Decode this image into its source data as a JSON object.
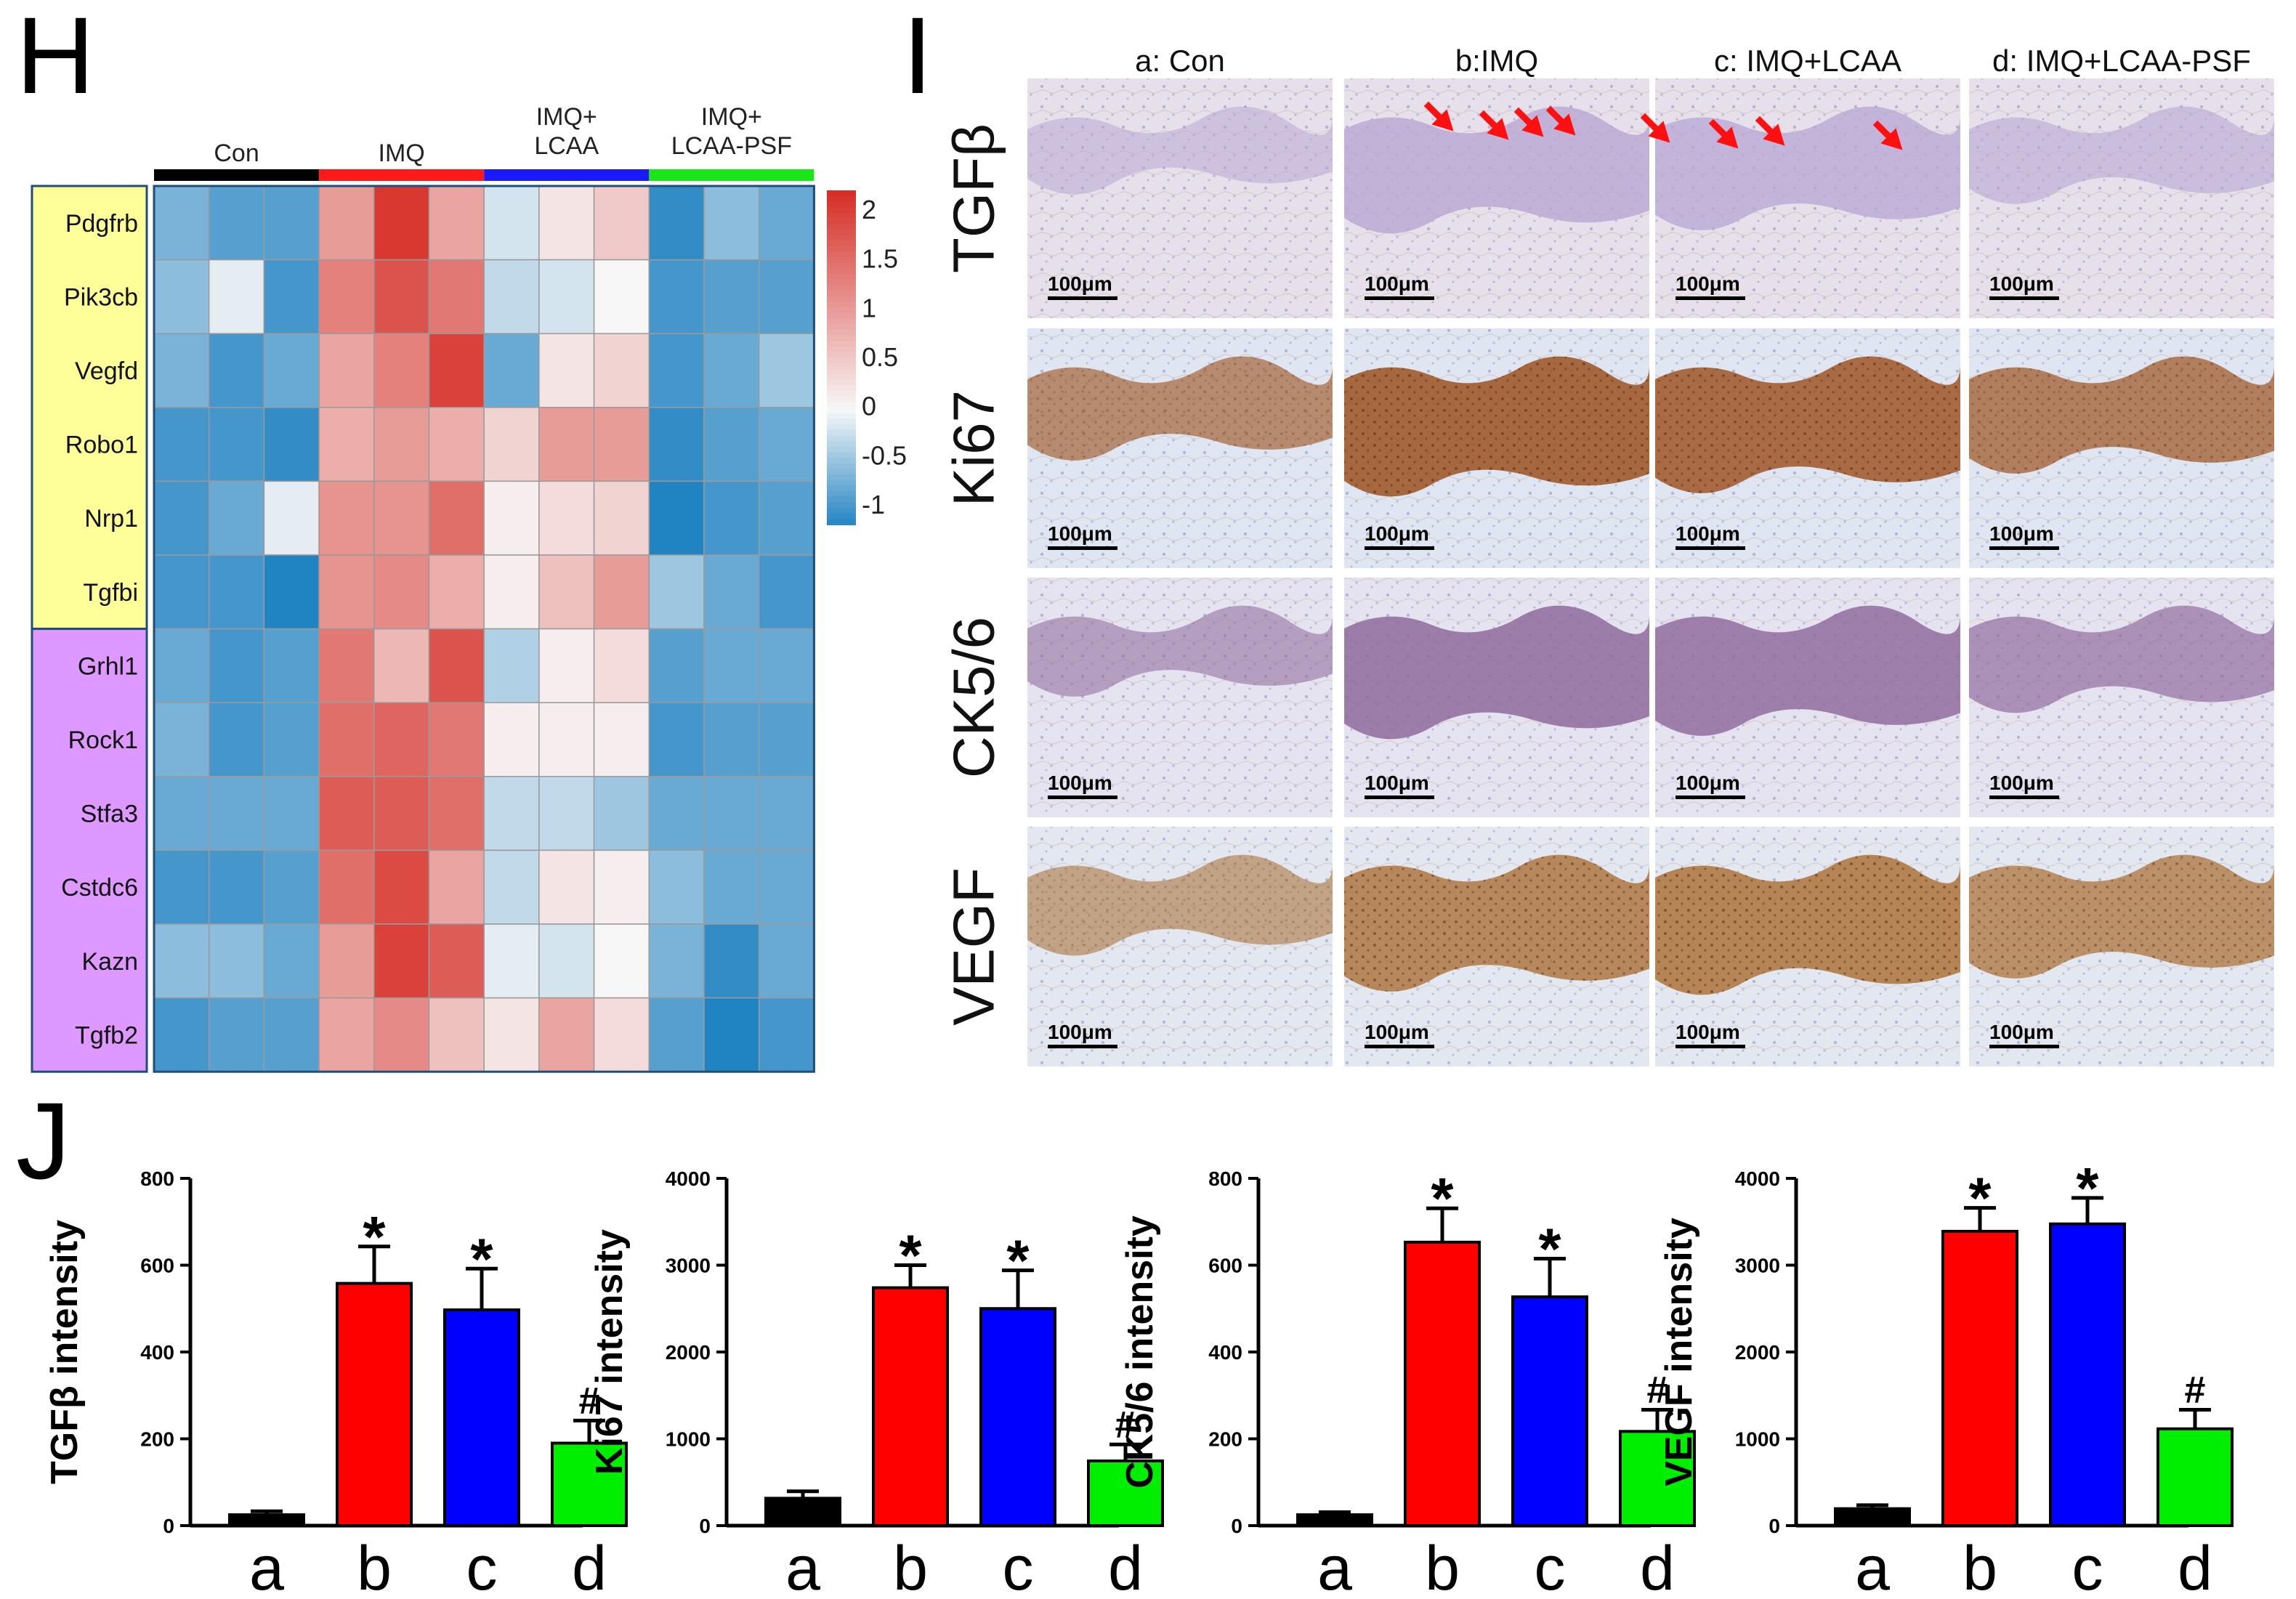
{
  "panels": {
    "H": {
      "label": "H",
      "groups": [
        {
          "name": "Con",
          "color": "#000000"
        },
        {
          "name": "IMQ",
          "color": "#ff1a1a"
        },
        {
          "name": "IMQ+\nLCAA",
          "color": "#1a1aff"
        },
        {
          "name": "IMQ+\nLCAA-PSF",
          "color": "#19e619"
        }
      ],
      "genes": [
        "Pdgfrb",
        "Pik3cb",
        "Vegfd",
        "Robo1",
        "Nrp1",
        "Tgfbi",
        "Grhl1",
        "Rock1",
        "Stfa3",
        "Cstdc6",
        "Kazn",
        "Tgfb2"
      ],
      "gene_group_colors": [
        "#ffff99",
        "#dd99ff"
      ],
      "values": [
        [
          -0.7,
          -0.9,
          -0.9,
          1.0,
          2.1,
          0.9,
          -0.2,
          0.2,
          0.5,
          -1.1,
          -0.6,
          -0.8
        ],
        [
          -0.6,
          -0.1,
          -1.0,
          1.3,
          1.8,
          1.4,
          -0.3,
          -0.2,
          0.0,
          -1.0,
          -0.9,
          -0.9
        ],
        [
          -0.7,
          -1.0,
          -0.8,
          0.9,
          1.3,
          2.0,
          -0.8,
          0.2,
          0.4,
          -1.0,
          -0.8,
          -0.5
        ],
        [
          -1.0,
          -1.0,
          -1.1,
          0.8,
          1.0,
          0.8,
          0.4,
          1.0,
          1.0,
          -1.1,
          -0.9,
          -0.8
        ],
        [
          -1.0,
          -0.8,
          -0.1,
          1.1,
          1.1,
          1.5,
          0.1,
          0.3,
          0.4,
          -1.3,
          -1.0,
          -0.9
        ],
        [
          -1.0,
          -1.0,
          -1.2,
          1.1,
          1.2,
          0.8,
          0.1,
          0.6,
          1.0,
          -0.5,
          -0.8,
          -1.0
        ],
        [
          -0.8,
          -1.0,
          -0.9,
          1.4,
          0.7,
          1.8,
          -0.4,
          0.1,
          0.3,
          -0.9,
          -0.8,
          -0.8
        ],
        [
          -0.7,
          -1.0,
          -0.9,
          1.5,
          1.6,
          1.4,
          0.1,
          0.1,
          0.1,
          -1.0,
          -0.9,
          -0.9
        ],
        [
          -0.8,
          -0.8,
          -0.8,
          1.7,
          1.7,
          1.5,
          -0.3,
          -0.3,
          -0.5,
          -0.8,
          -0.8,
          -0.8
        ],
        [
          -1.0,
          -1.0,
          -0.9,
          1.5,
          1.9,
          0.9,
          -0.3,
          0.2,
          0.1,
          -0.6,
          -0.8,
          -0.8
        ],
        [
          -0.6,
          -0.6,
          -0.8,
          1.0,
          2.0,
          1.7,
          -0.1,
          -0.2,
          0.0,
          -0.7,
          -1.1,
          -0.8
        ],
        [
          -1.0,
          -0.9,
          -0.9,
          0.9,
          1.2,
          0.6,
          0.2,
          0.9,
          0.3,
          -0.9,
          -1.2,
          -1.0
        ]
      ],
      "colorbar": {
        "ticks": [
          "2",
          "1.5",
          "1",
          "0.5",
          "0",
          "-0.5",
          "-1"
        ],
        "min": -1.2,
        "max": 2.2
      }
    },
    "I": {
      "label": "I",
      "columns": [
        "a: Con",
        "b:IMQ",
        "c: IMQ+LCAA",
        "d: IMQ+LCAA-PSF"
      ],
      "rows": [
        "TGFβ",
        "Ki67",
        "CK5/6",
        "VEGF"
      ],
      "scale_bar": "100μm"
    },
    "J": {
      "label": "J"
    }
  },
  "chart_data": [
    {
      "type": "bar",
      "title": "",
      "ylabel": "TGFβ intensity",
      "xlabel": "",
      "categories": [
        "a",
        "b",
        "c",
        "d"
      ],
      "values": [
        25,
        558,
        497,
        190
      ],
      "errors": [
        8,
        85,
        95,
        52
      ],
      "colors": [
        "#000000",
        "#ff0000",
        "#0000ff",
        "#00ee00"
      ],
      "annotations": [
        "",
        "*",
        "*",
        "#"
      ],
      "ylim": [
        0,
        800
      ],
      "yticks": [
        "0",
        "200",
        "400",
        "600",
        "800"
      ]
    },
    {
      "type": "bar",
      "title": "",
      "ylabel": "Ki67 intensity",
      "xlabel": "",
      "categories": [
        "a",
        "b",
        "c",
        "d"
      ],
      "values": [
        315,
        2740,
        2500,
        745
      ],
      "errors": [
        80,
        260,
        440,
        190
      ],
      "colors": [
        "#000000",
        "#ff0000",
        "#0000ff",
        "#00ee00"
      ],
      "annotations": [
        "",
        "*",
        "*",
        "#"
      ],
      "ylim": [
        0,
        4000
      ],
      "yticks": [
        "0",
        "1000",
        "2000",
        "3000",
        "4000"
      ]
    },
    {
      "type": "bar",
      "title": "",
      "ylabel": "CK5/6 intensity",
      "xlabel": "",
      "categories": [
        "a",
        "b",
        "c",
        "d"
      ],
      "values": [
        25,
        653,
        527,
        217
      ],
      "errors": [
        6,
        78,
        88,
        50
      ],
      "colors": [
        "#000000",
        "#ff0000",
        "#0000ff",
        "#00ee00"
      ],
      "annotations": [
        "",
        "*",
        "*",
        "#"
      ],
      "ylim": [
        0,
        800
      ],
      "yticks": [
        "0",
        "200",
        "400",
        "600",
        "800"
      ]
    },
    {
      "type": "bar",
      "title": "",
      "ylabel": "VEGF intensity",
      "xlabel": "",
      "categories": [
        "a",
        "b",
        "c",
        "d"
      ],
      "values": [
        195,
        3390,
        3475,
        1115
      ],
      "errors": [
        40,
        270,
        300,
        220
      ],
      "colors": [
        "#000000",
        "#ff0000",
        "#0000ff",
        "#00ee00"
      ],
      "annotations": [
        "",
        "*",
        "*",
        "#"
      ],
      "ylim": [
        0,
        4000
      ],
      "yticks": [
        "0",
        "1000",
        "2000",
        "3000",
        "4000"
      ]
    }
  ]
}
